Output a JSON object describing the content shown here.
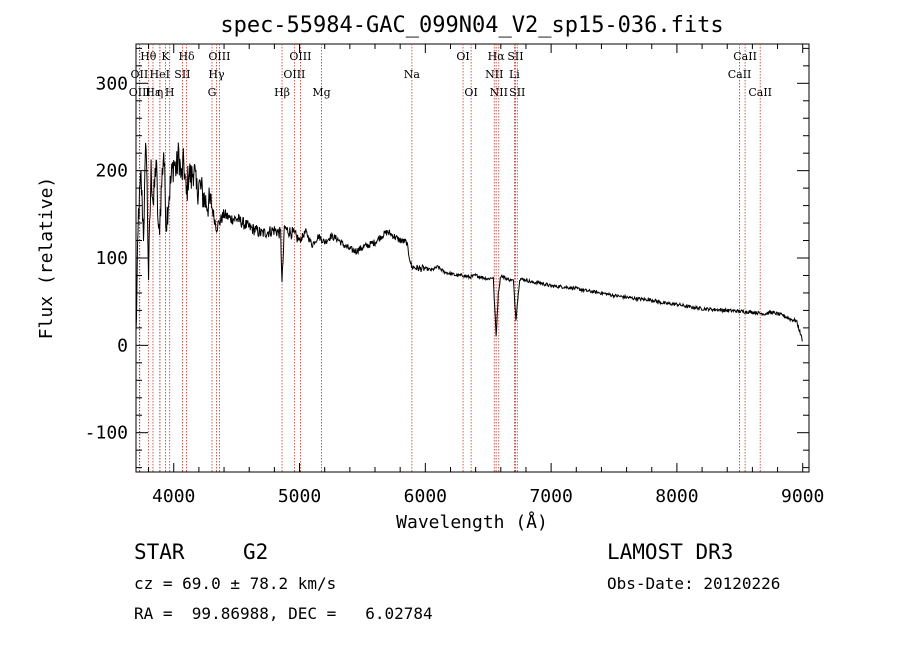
{
  "chart_data": {
    "type": "line",
    "title": "spec-55984-GAC_099N04_V2_sp15-036.fits",
    "xlabel": "Wavelength (Å)",
    "ylabel": "Flux (relative)",
    "xlim": [
      3700,
      9050
    ],
    "ylim": [
      -145,
      345
    ],
    "xticks": [
      4000,
      5000,
      6000,
      7000,
      8000,
      9000
    ],
    "yticks": [
      -100,
      0,
      100,
      200,
      300
    ],
    "grid": false,
    "series": [
      {
        "name": "spectrum",
        "x": [
          3700,
          3720,
          3740,
          3760,
          3780,
          3800,
          3820,
          3840,
          3860,
          3880,
          3900,
          3920,
          3940,
          3960,
          3980,
          4000,
          4020,
          4040,
          4060,
          4080,
          4100,
          4120,
          4140,
          4160,
          4180,
          4200,
          4250,
          4300,
          4340,
          4400,
          4450,
          4500,
          4550,
          4600,
          4650,
          4700,
          4750,
          4800,
          4850,
          4861,
          4880,
          4900,
          4950,
          5000,
          5050,
          5100,
          5150,
          5200,
          5250,
          5300,
          5350,
          5400,
          5450,
          5500,
          5550,
          5600,
          5650,
          5700,
          5750,
          5800,
          5850,
          5890,
          5950,
          6000,
          6050,
          6100,
          6150,
          6200,
          6250,
          6300,
          6350,
          6400,
          6450,
          6500,
          6540,
          6563,
          6580,
          6600,
          6650,
          6700,
          6720,
          6750,
          6800,
          6850,
          6900,
          6950,
          7000,
          7100,
          7200,
          7300,
          7400,
          7500,
          7600,
          7700,
          7800,
          7900,
          8000,
          8100,
          8200,
          8300,
          8400,
          8500,
          8600,
          8650,
          8700,
          8750,
          8800,
          8850,
          8900,
          8950,
          9000
        ],
        "values": [
          10,
          150,
          190,
          130,
          240,
          80,
          200,
          160,
          215,
          120,
          175,
          225,
          140,
          170,
          190,
          210,
          200,
          220,
          190,
          210,
          170,
          200,
          190,
          205,
          175,
          185,
          165,
          160,
          135,
          150,
          145,
          145,
          140,
          135,
          132,
          128,
          130,
          132,
          128,
          70,
          135,
          132,
          128,
          120,
          130,
          115,
          125,
          118,
          125,
          122,
          115,
          110,
          108,
          112,
          115,
          118,
          125,
          130,
          125,
          120,
          118,
          90,
          88,
          88,
          86,
          90,
          84,
          82,
          80,
          80,
          78,
          80,
          78,
          76,
          78,
          10,
          60,
          80,
          76,
          74,
          30,
          76,
          75,
          72,
          72,
          70,
          68,
          67,
          65,
          62,
          60,
          57,
          55,
          53,
          52,
          48,
          47,
          44,
          42,
          41,
          40,
          39,
          38,
          37,
          36,
          38,
          36,
          34,
          30,
          28,
          5
        ]
      }
    ],
    "line_labels": [
      {
        "label": "Hθ",
        "x": 3798,
        "row": 1
      },
      {
        "label": "OII",
        "x": 3727,
        "row": 2
      },
      {
        "label": "OIII",
        "x": 3730,
        "row": 3
      },
      {
        "label": "Hε",
        "x": 3835,
        "row": 3
      },
      {
        "label": "K",
        "x": 3934,
        "row": 1
      },
      {
        "label": "HeI",
        "x": 3889,
        "row": 2
      },
      {
        "label": "η",
        "x": 3890,
        "row": 3
      },
      {
        "label": "H",
        "x": 3968,
        "row": 3
      },
      {
        "label": "SII",
        "x": 4069,
        "row": 2
      },
      {
        "label": "Hδ",
        "x": 4102,
        "row": 1
      },
      {
        "label": "OIII",
        "x": 4363,
        "row": 1
      },
      {
        "label": "Hγ",
        "x": 4340,
        "row": 2
      },
      {
        "label": "G",
        "x": 4304,
        "row": 3
      },
      {
        "label": "OIII",
        "x": 5007,
        "row": 1
      },
      {
        "label": "OIII",
        "x": 4959,
        "row": 2
      },
      {
        "label": "Hβ",
        "x": 4861,
        "row": 3
      },
      {
        "label": "Mg",
        "x": 5175,
        "row": 3
      },
      {
        "label": "Na",
        "x": 5893,
        "row": 2
      },
      {
        "label": "OI",
        "x": 6300,
        "row": 1
      },
      {
        "label": "OI",
        "x": 6364,
        "row": 3
      },
      {
        "label": "Hα",
        "x": 6563,
        "row": 1
      },
      {
        "label": "NII",
        "x": 6548,
        "row": 2
      },
      {
        "label": "NII",
        "x": 6584,
        "row": 3
      },
      {
        "label": "SII",
        "x": 6717,
        "row": 1
      },
      {
        "label": "Li",
        "x": 6708,
        "row": 2
      },
      {
        "label": "SII",
        "x": 6731,
        "row": 3
      },
      {
        "label": "CaII",
        "x": 8542,
        "row": 1
      },
      {
        "label": "CaII",
        "x": 8498,
        "row": 2
      },
      {
        "label": "CaII",
        "x": 8662,
        "row": 3
      }
    ]
  },
  "info": {
    "object_type": "STAR",
    "subclass": "G2",
    "survey": "LAMOST DR3",
    "velocity": "cz = 69.0 ± 78.2 km/s",
    "obs_date": "Obs-Date: 20120226",
    "coords": "RA =  99.86988, DEC =   6.02784"
  }
}
